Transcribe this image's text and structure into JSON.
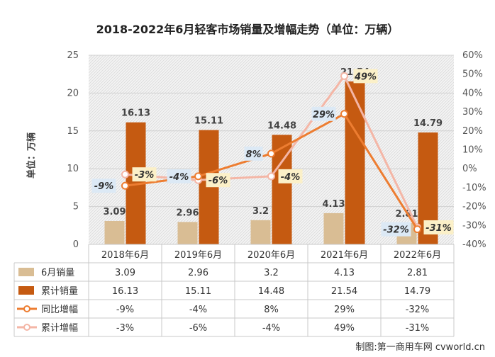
{
  "title": "2018-2022年6月轻客市场销量及增幅走势（单位：万辆）",
  "ylabel": "单位：万辆",
  "source": "制图:第一商用车网 cvworld.cn",
  "colors": {
    "monthly": "#d9bd94",
    "cumulative": "#c55a11",
    "yoy": "#ed7d31",
    "cum_growth": "#f4b6a6",
    "label_blue_bg": "#dce9f5",
    "label_yellow_bg": "#fbf0c8"
  },
  "chart_data": {
    "type": "bar",
    "categories": [
      "2018年6月",
      "2019年6月",
      "2020年6月",
      "2021年6月",
      "2022年6月"
    ],
    "series": [
      {
        "name": "6月销量",
        "kind": "bar",
        "axis": "left",
        "values": [
          3.09,
          2.96,
          3.2,
          4.13,
          2.81
        ],
        "labels": [
          "3.09",
          "2.96",
          "3.2",
          "4.13",
          "2.81"
        ],
        "table": [
          "3.09",
          "2.96",
          "3.2",
          "4.13",
          "2.81"
        ]
      },
      {
        "name": "累计销量",
        "kind": "bar",
        "axis": "left",
        "values": [
          16.13,
          15.11,
          14.48,
          21.54,
          14.79
        ],
        "labels": [
          "16.13",
          "15.11",
          "14.48",
          "21.54",
          "14.79"
        ],
        "table": [
          "16.13",
          "15.11",
          "14.48",
          "21.54",
          "14.79"
        ]
      },
      {
        "name": "同比增幅",
        "kind": "line",
        "axis": "right",
        "values": [
          -9,
          -4,
          8,
          29,
          -32
        ],
        "labels": [
          "-9%",
          "-4%",
          "8%",
          "29%",
          "-32%"
        ],
        "table": [
          "-9%",
          "-4%",
          "8%",
          "29%",
          "-32%"
        ]
      },
      {
        "name": "累计增幅",
        "kind": "line",
        "axis": "right",
        "values": [
          -3,
          -6,
          -4,
          49,
          -31
        ],
        "labels": [
          "-3%",
          "-6%",
          "-4%",
          "49%",
          "-31%"
        ],
        "table": [
          "-3%",
          "-6%",
          "-4%",
          "49%",
          "-31%"
        ]
      }
    ],
    "ylim_left": [
      0,
      25
    ],
    "yticks_left": [
      "0",
      "5",
      "10",
      "15",
      "20",
      "25"
    ],
    "ylim_right": [
      -40,
      60
    ],
    "yticks_right": [
      "-40%",
      "-30%",
      "-20%",
      "-10%",
      "0%",
      "10%",
      "20%",
      "30%",
      "40%",
      "50%",
      "60%"
    ],
    "grid": true,
    "legend": "data-table"
  }
}
